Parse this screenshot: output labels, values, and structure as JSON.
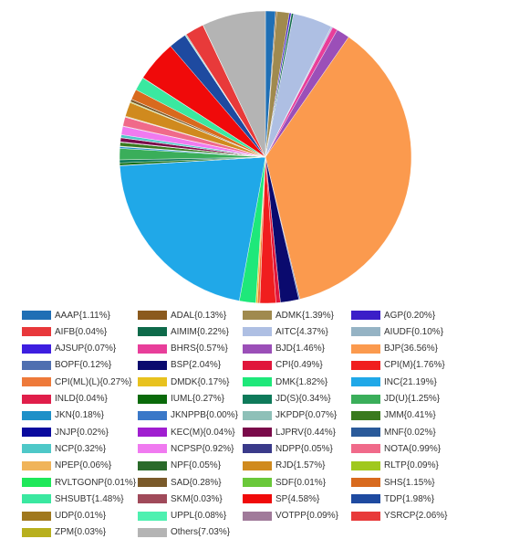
{
  "chart_data": {
    "type": "pie",
    "legend_position": "bottom",
    "slices": [
      {
        "label": "AAAP{1.11%}",
        "value": 1.11,
        "color": "#1f6fb5"
      },
      {
        "label": "ADAL{0.13%}",
        "value": 0.13,
        "color": "#8b5a1e"
      },
      {
        "label": "ADMK{1.39%}",
        "value": 1.39,
        "color": "#a08a4e"
      },
      {
        "label": "AGP{0.20%}",
        "value": 0.2,
        "color": "#3b1ec8"
      },
      {
        "label": "AIFB{0.04%}",
        "value": 0.04,
        "color": "#e8383b"
      },
      {
        "label": "AIMIM{0.22%}",
        "value": 0.22,
        "color": "#0e6a4a"
      },
      {
        "label": "AITC{4.37%}",
        "value": 4.37,
        "color": "#aebfe3"
      },
      {
        "label": "AIUDF{0.10%}",
        "value": 0.1,
        "color": "#95b3c4"
      },
      {
        "label": "AJSUP{0.07%}",
        "value": 0.07,
        "color": "#3d1ee0"
      },
      {
        "label": "BHRS{0.57%}",
        "value": 0.57,
        "color": "#e83e9a"
      },
      {
        "label": "BJD{1.46%}",
        "value": 1.46,
        "color": "#9b4fb8"
      },
      {
        "label": "BJP{36.56%}",
        "value": 36.56,
        "color": "#fb9a4e"
      },
      {
        "label": "BOPF{0.12%}",
        "value": 0.12,
        "color": "#4f6fb0"
      },
      {
        "label": "BSP{2.04%}",
        "value": 2.04,
        "color": "#0a0a6e"
      },
      {
        "label": "CPI{0.49%}",
        "value": 0.49,
        "color": "#e0163b"
      },
      {
        "label": "CPI(M){1.76%}",
        "value": 1.76,
        "color": "#f01e1e"
      },
      {
        "label": "CPI(ML)(L){0.27%}",
        "value": 0.27,
        "color": "#ee7a3a"
      },
      {
        "label": "DMDK{0.17%}",
        "value": 0.17,
        "color": "#e8c21e"
      },
      {
        "label": "DMK{1.82%}",
        "value": 1.82,
        "color": "#1ee87a"
      },
      {
        "label": "INC{21.19%}",
        "value": 21.19,
        "color": "#20a8e8"
      },
      {
        "label": "INLD{0.04%}",
        "value": 0.04,
        "color": "#e01e4a"
      },
      {
        "label": "IUML{0.27%}",
        "value": 0.27,
        "color": "#0a6a0a"
      },
      {
        "label": "JD(S){0.34%}",
        "value": 0.34,
        "color": "#0e7a5a"
      },
      {
        "label": "JD(U){1.25%}",
        "value": 1.25,
        "color": "#3aae5a"
      },
      {
        "label": "JKN{0.18%}",
        "value": 0.18,
        "color": "#1e90c8"
      },
      {
        "label": "JKNPPB{0.00%}",
        "value": 0.0,
        "color": "#3a78c8"
      },
      {
        "label": "JKPDP{0.07%}",
        "value": 0.07,
        "color": "#8ec0b8"
      },
      {
        "label": "JMM{0.41%}",
        "value": 0.41,
        "color": "#3a7a1e"
      },
      {
        "label": "JNJP{0.02%}",
        "value": 0.02,
        "color": "#0a0a9e"
      },
      {
        "label": "KEC(M){0.04%}",
        "value": 0.04,
        "color": "#a01ed0"
      },
      {
        "label": "LJPRV{0.44%}",
        "value": 0.44,
        "color": "#7a0a4a"
      },
      {
        "label": "MNF{0.02%}",
        "value": 0.02,
        "color": "#2a5a9a"
      },
      {
        "label": "NCP{0.32%}",
        "value": 0.32,
        "color": "#4ec8c8"
      },
      {
        "label": "NCPSP{0.92%}",
        "value": 0.92,
        "color": "#f07af0"
      },
      {
        "label": "NDPP{0.05%}",
        "value": 0.05,
        "color": "#3a3a8a"
      },
      {
        "label": "NOTA{0.99%}",
        "value": 0.99,
        "color": "#f06a8a"
      },
      {
        "label": "NPEP{0.06%}",
        "value": 0.06,
        "color": "#f0b45a"
      },
      {
        "label": "NPF{0.05%}",
        "value": 0.05,
        "color": "#2a6a2a"
      },
      {
        "label": "RJD{1.57%}",
        "value": 1.57,
        "color": "#d08a1e"
      },
      {
        "label": "RLTP{0.09%}",
        "value": 0.09,
        "color": "#a0c81e"
      },
      {
        "label": "RVLTGONP{0.01%}",
        "value": 0.01,
        "color": "#1ee85a"
      },
      {
        "label": "SAD{0.28%}",
        "value": 0.28,
        "color": "#7a5a2a"
      },
      {
        "label": "SDF{0.01%}",
        "value": 0.01,
        "color": "#6ac83a"
      },
      {
        "label": "SHS{1.15%}",
        "value": 1.15,
        "color": "#d86a1e"
      },
      {
        "label": "SHSUBT{1.48%}",
        "value": 1.48,
        "color": "#3ae8a0"
      },
      {
        "label": "SKM{0.03%}",
        "value": 0.03,
        "color": "#a04a5a"
      },
      {
        "label": "SP{4.58%}",
        "value": 4.58,
        "color": "#f00a0a"
      },
      {
        "label": "TDP{1.98%}",
        "value": 1.98,
        "color": "#1e4aa0"
      },
      {
        "label": "UDP{0.01%}",
        "value": 0.01,
        "color": "#a0781e"
      },
      {
        "label": "UPPL{0.08%}",
        "value": 0.08,
        "color": "#4ef0b0"
      },
      {
        "label": "VOTPP{0.09%}",
        "value": 0.09,
        "color": "#a07a9a"
      },
      {
        "label": "YSRCP{2.06%}",
        "value": 2.06,
        "color": "#e83a3a"
      },
      {
        "label": "ZPM{0.03%}",
        "value": 0.03,
        "color": "#b8b01e"
      },
      {
        "label": "Others{7.03%}",
        "value": 7.03,
        "color": "#b4b4b4"
      }
    ]
  }
}
